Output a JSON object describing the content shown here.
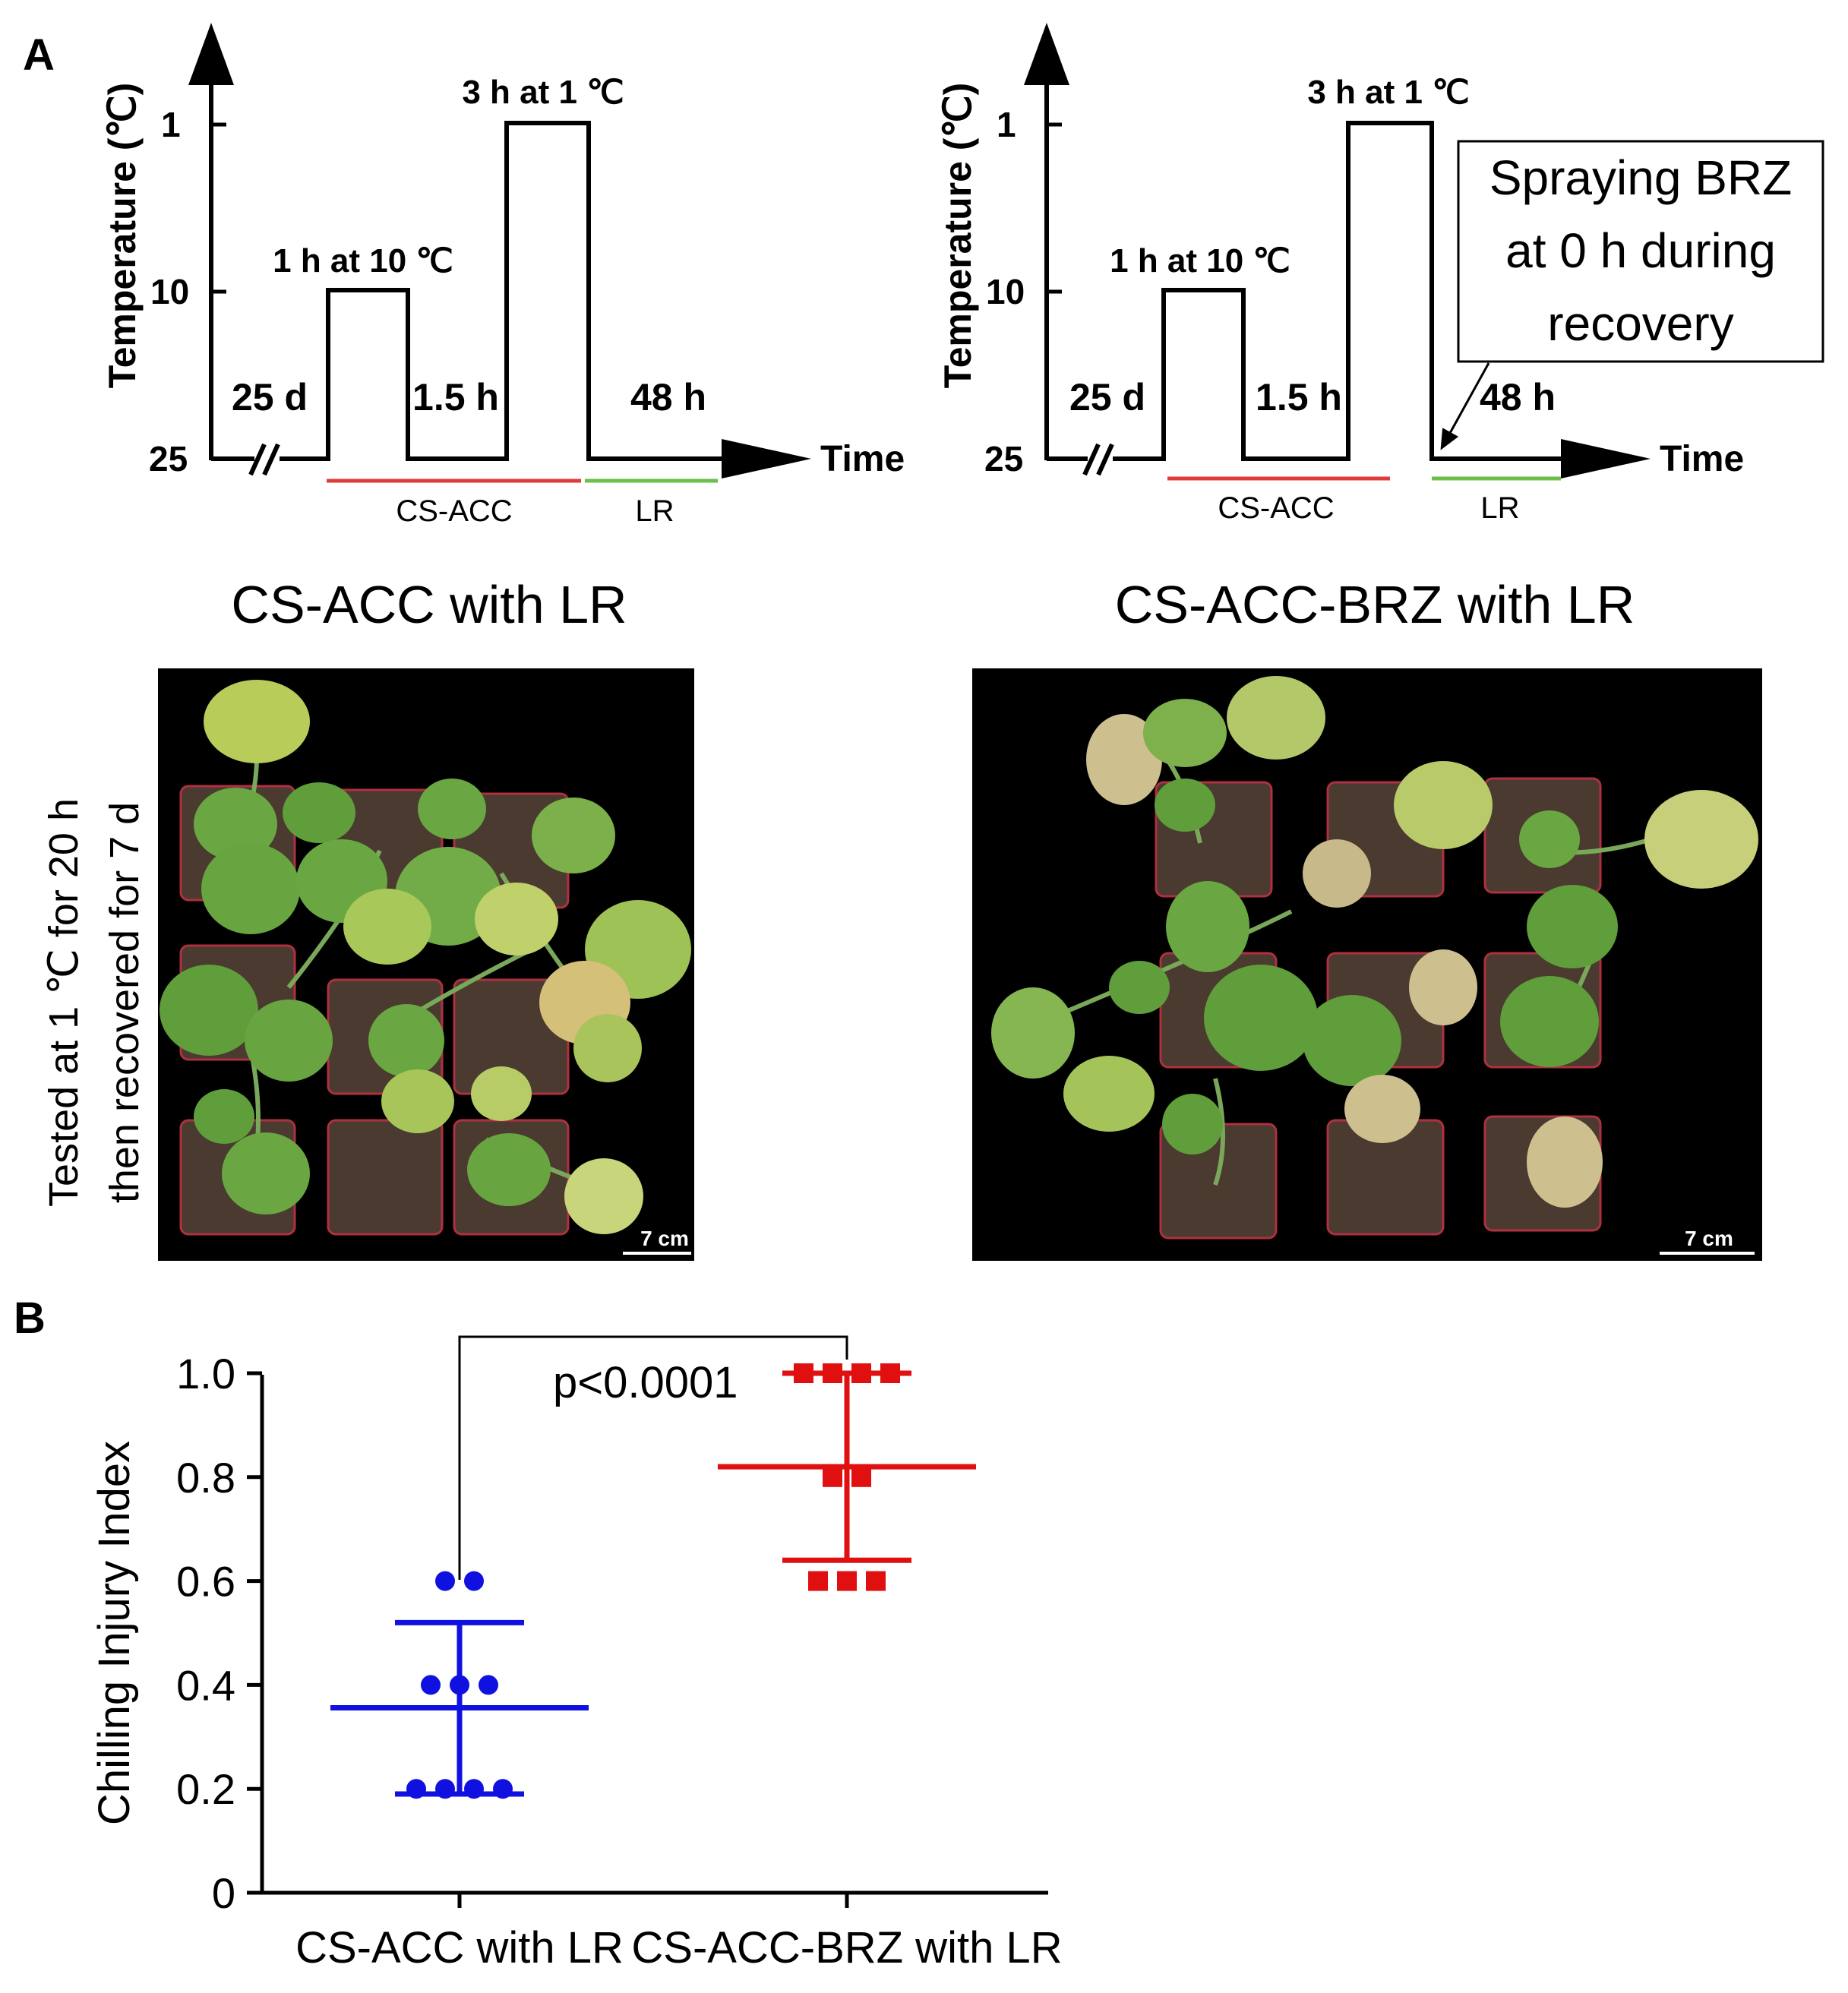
{
  "panel_a": {
    "letter": "A",
    "left": {
      "ylabel": "Temperature (℃)",
      "yticks": [
        "1",
        "10",
        "25"
      ],
      "xlabel": "Time",
      "step_10": "1 h at 10 ℃",
      "step_1": "3 h at 1 ℃",
      "seg_25d": "25 d",
      "seg_1_5h": "1.5 h",
      "seg_48h": "48 h",
      "bar_red": "CS-ACC",
      "bar_green": "LR"
    },
    "right": {
      "ylabel": "Temperature (℃)",
      "yticks": [
        "1",
        "10",
        "25"
      ],
      "xlabel": "Time",
      "step_10": "1 h at 10 ℃",
      "step_1": "3 h at 1 ℃",
      "seg_25d": "25 d",
      "seg_1_5h": "1.5 h",
      "seg_48h": "48 h",
      "bar_red": "CS-ACC",
      "bar_green": "LR",
      "note_lines": [
        "Spraying BRZ",
        "at 0 h during",
        "recovery"
      ]
    },
    "photo_titles": [
      "CS-ACC with LR",
      "CS-ACC-BRZ with LR"
    ],
    "side_label_lines": [
      "Tested at 1 ℃ for 20 h",
      "then recovered for 7 d"
    ],
    "scale_bars": [
      "7 cm",
      "7 cm"
    ]
  },
  "panel_b": {
    "letter": "B",
    "pvalue": "p<0.0001"
  },
  "colors": {
    "group1": "#1010e0",
    "group2": "#e01010",
    "cs_bar": "#e03b3b",
    "lr_bar": "#6cbf4a",
    "photo_bg": "#000000",
    "leaf": "#5f9e3a",
    "pot": "#4a3a30"
  },
  "chart_data": {
    "type": "scatter",
    "title": "",
    "ylabel": "Chilling Injury Index",
    "xlabel": "",
    "categories": [
      "CS-ACC with LR",
      "CS-ACC-BRZ with LR"
    ],
    "ylim": [
      0,
      1.0
    ],
    "yticks": [
      "0",
      "0.2",
      "0.4",
      "0.6",
      "0.8",
      "1.0"
    ],
    "series": [
      {
        "category": "CS-ACC with LR",
        "marker": "circle",
        "values": [
          0.6,
          0.6,
          0.4,
          0.4,
          0.4,
          0.2,
          0.2,
          0.2,
          0.2
        ],
        "mean": 0.356,
        "sd_low": 0.19,
        "sd_high": 0.52
      },
      {
        "category": "CS-ACC-BRZ with LR",
        "marker": "square",
        "values": [
          1.0,
          1.0,
          1.0,
          1.0,
          0.8,
          0.8,
          0.6,
          0.6,
          0.6
        ],
        "mean": 0.82,
        "sd_low": 0.64,
        "sd_high": 1.0
      }
    ],
    "annotation": "p<0.0001",
    "grid": false
  }
}
